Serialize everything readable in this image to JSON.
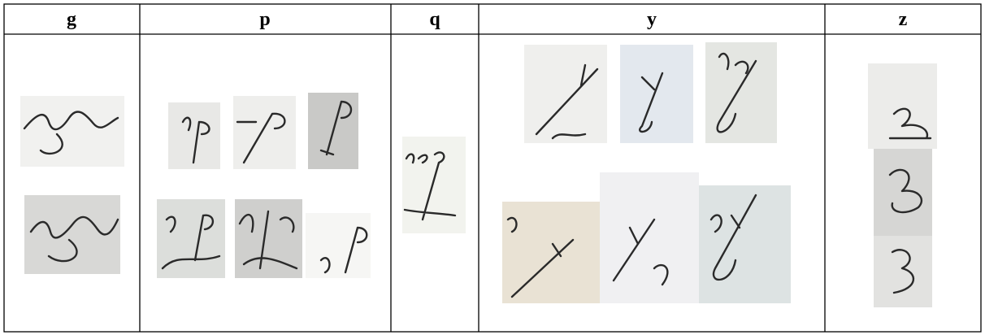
{
  "table": {
    "headers": [
      "g",
      "p",
      "q",
      "y",
      "z"
    ]
  }
}
